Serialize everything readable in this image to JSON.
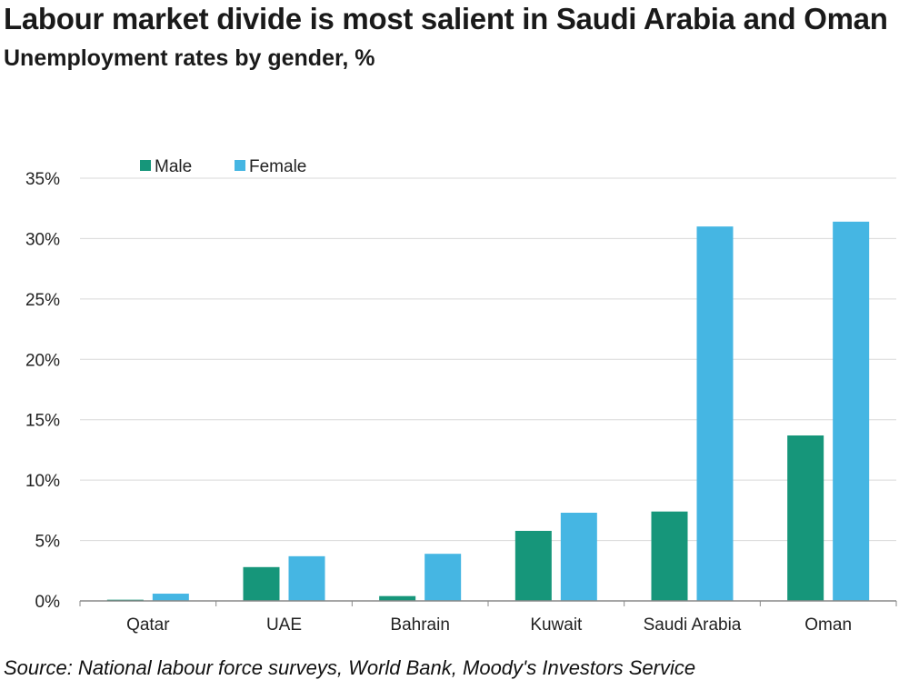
{
  "title": "Labour market divide is most salient in Saudi Arabia and Oman",
  "subtitle": "Unemployment rates by gender, %",
  "source": "Source: National labour force surveys, World Bank, Moody's Investors Service",
  "colors": {
    "male": "#16967a",
    "female": "#45b6e3",
    "grid": "#d9d9d9",
    "axis": "#888888"
  },
  "chart_data": {
    "type": "bar",
    "categories": [
      "Qatar",
      "UAE",
      "Bahrain",
      "Kuwait",
      "Saudi Arabia",
      "Oman"
    ],
    "series": [
      {
        "name": "Male",
        "values": [
          0.1,
          2.8,
          0.4,
          5.8,
          7.4,
          13.7
        ]
      },
      {
        "name": "Female",
        "values": [
          0.6,
          3.7,
          3.9,
          7.3,
          31.0,
          31.4
        ]
      }
    ],
    "ylim": [
      0,
      35
    ],
    "yticks": [
      0,
      5,
      10,
      15,
      20,
      25,
      30,
      35
    ],
    "ytick_labels": [
      "0%",
      "5%",
      "10%",
      "15%",
      "20%",
      "25%",
      "30%",
      "35%"
    ],
    "legend_placement": "top-left",
    "grid": true
  }
}
